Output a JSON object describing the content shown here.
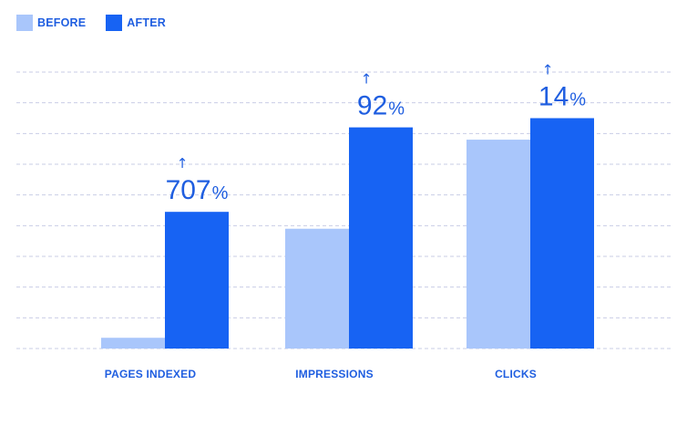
{
  "colors": {
    "before": "#a9c6fb",
    "after": "#1763f3",
    "text": "#1f5ee0",
    "grid": "#c9cde6"
  },
  "legend": {
    "before_label": "BEFORE",
    "after_label": "AFTER"
  },
  "chart_data": {
    "type": "bar",
    "categories": [
      "PAGES INDEXED",
      "IMPRESSIONS",
      "CLICKS"
    ],
    "series": [
      {
        "name": "BEFORE",
        "values": [
          0.35,
          3.9,
          6.8
        ]
      },
      {
        "name": "AFTER",
        "values": [
          4.45,
          7.2,
          7.5
        ]
      }
    ],
    "ylim": [
      0,
      9
    ],
    "grid": true,
    "legend_position": "top-left",
    "annotations": [
      {
        "category": "PAGES INDEXED",
        "number": "707",
        "unit": "%",
        "arrow": "↑"
      },
      {
        "category": "IMPRESSIONS",
        "number": "92",
        "unit": "%",
        "arrow": "↑"
      },
      {
        "category": "CLICKS",
        "number": "14",
        "unit": "%",
        "arrow": "↑"
      }
    ]
  }
}
